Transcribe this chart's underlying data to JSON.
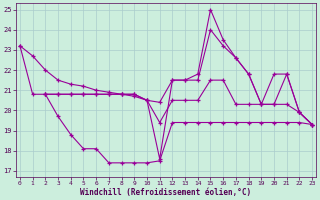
{
  "xlabel": "Windchill (Refroidissement éolien,°C)",
  "background_color": "#cceedd",
  "grid_color": "#aacccc",
  "line_color": "#990099",
  "xlim": [
    0,
    23
  ],
  "ylim": [
    17,
    25
  ],
  "yticks": [
    17,
    18,
    19,
    20,
    21,
    22,
    23,
    24,
    25
  ],
  "xticks": [
    0,
    1,
    2,
    3,
    4,
    5,
    6,
    7,
    8,
    9,
    10,
    11,
    12,
    13,
    14,
    15,
    16,
    17,
    18,
    19,
    20,
    21,
    22,
    23
  ],
  "series": [
    {
      "x": [
        0,
        1,
        2,
        3,
        4,
        5,
        6,
        7,
        8,
        9,
        10,
        11,
        12,
        13,
        14,
        15,
        16,
        17,
        18,
        19,
        20,
        21,
        22,
        23
      ],
      "y": [
        23.2,
        22.7,
        22.0,
        21.5,
        21.3,
        21.2,
        21.0,
        20.9,
        20.8,
        20.7,
        20.5,
        20.4,
        21.5,
        21.5,
        21.8,
        25.0,
        23.5,
        22.6,
        21.8,
        20.3,
        21.8,
        21.8,
        19.9,
        19.3
      ]
    },
    {
      "x": [
        0,
        1,
        2,
        3,
        4,
        5,
        6,
        7,
        8,
        9,
        10,
        11,
        12,
        13,
        14,
        15,
        16,
        17,
        18,
        19,
        20,
        21,
        22,
        23
      ],
      "y": [
        23.2,
        20.8,
        20.8,
        19.7,
        18.8,
        18.1,
        18.1,
        17.4,
        17.4,
        17.4,
        17.4,
        17.5,
        19.4,
        19.4,
        19.4,
        19.4,
        19.4,
        19.4,
        19.4,
        19.4,
        19.4,
        19.4,
        19.4,
        19.3
      ]
    },
    {
      "x": [
        2,
        3,
        4,
        5,
        6,
        7,
        8,
        9,
        10,
        11,
        12,
        13,
        14,
        15,
        16,
        17,
        18,
        19,
        20,
        21,
        22,
        23
      ],
      "y": [
        20.8,
        20.8,
        20.8,
        20.8,
        20.8,
        20.8,
        20.8,
        20.8,
        20.5,
        17.6,
        21.5,
        21.5,
        21.5,
        24.0,
        23.2,
        22.6,
        21.8,
        20.3,
        20.3,
        21.8,
        19.9,
        19.3
      ]
    },
    {
      "x": [
        2,
        3,
        4,
        5,
        6,
        7,
        8,
        9,
        10,
        11,
        12,
        13,
        14,
        15,
        16,
        17,
        18,
        19,
        20,
        21,
        22,
        23
      ],
      "y": [
        20.8,
        20.8,
        20.8,
        20.8,
        20.8,
        20.8,
        20.8,
        20.8,
        20.5,
        19.4,
        20.5,
        20.5,
        20.5,
        21.5,
        21.5,
        20.3,
        20.3,
        20.3,
        20.3,
        20.3,
        19.9,
        19.3
      ]
    }
  ]
}
